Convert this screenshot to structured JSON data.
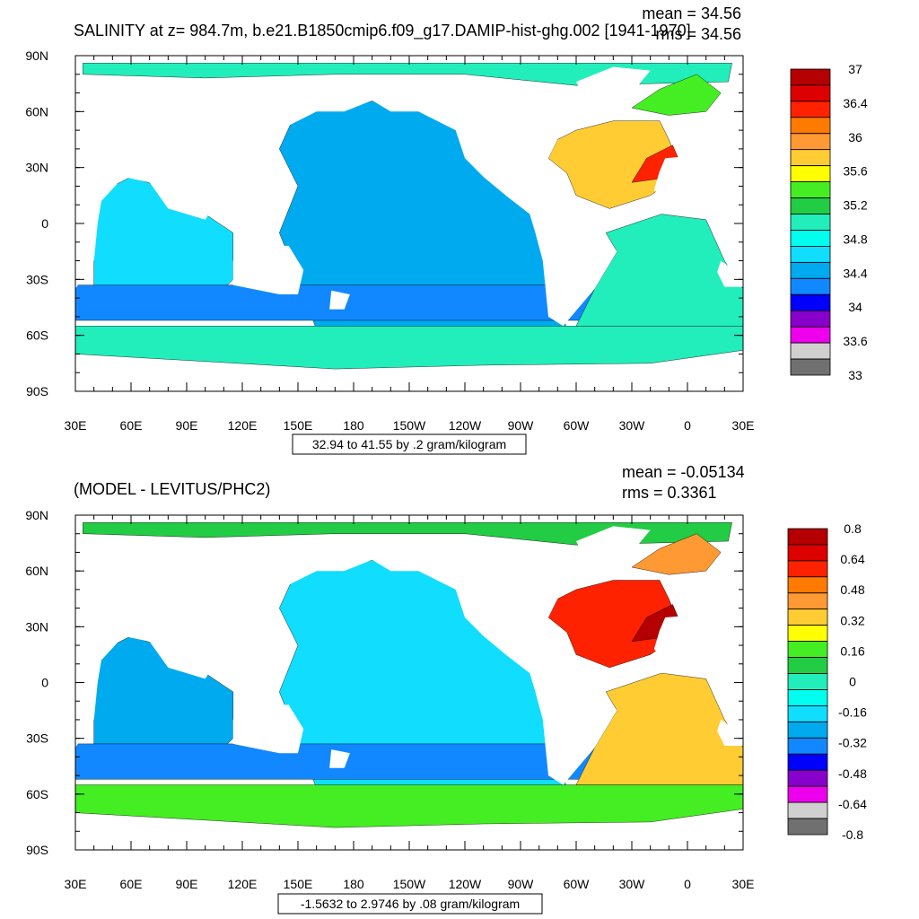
{
  "colors": {
    "ocean_land_mask": "#ffffff",
    "frame": "#000000"
  },
  "chart_data": [
    {
      "type": "heatmap",
      "title": "SALINITY at z= 984.7m, b.e21.B1850cmip6.f09_g17.DAMIP-hist-ghg.002 [1941-1970]",
      "stats": {
        "mean": "mean = 34.56",
        "rms": "rms = 34.56"
      },
      "x_tick_labels": [
        "30E",
        "60E",
        "90E",
        "120E",
        "150E",
        "180",
        "150W",
        "120W",
        "90W",
        "60W",
        "30W",
        "0",
        "30E"
      ],
      "y_tick_labels": [
        "90N",
        "60N",
        "30N",
        "0",
        "30S",
        "60S",
        "90S"
      ],
      "lon_range": [
        30,
        390
      ],
      "lat_range": [
        -90,
        90
      ],
      "info_box": "32.94 to 41.55 by .2 gram/kilogram",
      "colorbar": {
        "labels": [
          "37",
          "36.4",
          "36",
          "35.6",
          "35.2",
          "34.8",
          "34.4",
          "34",
          "33.6",
          "33"
        ],
        "colors": [
          "#b40000",
          "#dd0000",
          "#ff2200",
          "#ff7a00",
          "#ff9933",
          "#ffcc33",
          "#ffff00",
          "#44ee22",
          "#22cc44",
          "#22eebb",
          "#00ffee",
          "#11ddff",
          "#00aaee",
          "#1188ff",
          "#0000ff",
          "#8800cc",
          "#ee00ee",
          "#d0d0d0",
          "#707070"
        ]
      },
      "regions": [
        {
          "name": "arctic",
          "color": "#22eebb"
        },
        {
          "name": "pacific",
          "color": "#00aaee"
        },
        {
          "name": "indian",
          "color": "#11ddff"
        },
        {
          "name": "southern_band",
          "color": "#1188ff"
        },
        {
          "name": "antarctic",
          "color": "#22eebb"
        },
        {
          "name": "atlantic_south",
          "color": "#22eebb"
        },
        {
          "name": "atlantic_north",
          "color": "#ffcc33"
        },
        {
          "name": "atlantic_core",
          "color": "#ff2200"
        },
        {
          "name": "nordic",
          "color": "#44ee22"
        }
      ]
    },
    {
      "type": "heatmap",
      "title": "(MODEL - LEVITUS/PHC2)",
      "stats": {
        "mean": "mean = -0.05134",
        "rms": "rms = 0.3361"
      },
      "x_tick_labels": [
        "30E",
        "60E",
        "90E",
        "120E",
        "150E",
        "180",
        "150W",
        "120W",
        "90W",
        "60W",
        "30W",
        "0",
        "30E"
      ],
      "y_tick_labels": [
        "90N",
        "60N",
        "30N",
        "0",
        "30S",
        "60S",
        "90S"
      ],
      "lon_range": [
        30,
        390
      ],
      "lat_range": [
        -90,
        90
      ],
      "info_box": "-1.5632 to 2.9746 by .08 gram/kilogram",
      "colorbar": {
        "labels": [
          "0.8",
          "0.64",
          "0.48",
          "0.32",
          "0.16",
          "0",
          "-0.16",
          "-0.32",
          "-0.48",
          "-0.64",
          "-0.8"
        ],
        "colors": [
          "#b40000",
          "#dd0000",
          "#ff2200",
          "#ff7a00",
          "#ff9933",
          "#ffcc33",
          "#ffff00",
          "#44ee22",
          "#22cc44",
          "#22eebb",
          "#00ffee",
          "#11ddff",
          "#00aaee",
          "#1188ff",
          "#0000ff",
          "#8800cc",
          "#ee00ee",
          "#d0d0d0",
          "#707070"
        ]
      },
      "regions": [
        {
          "name": "arctic",
          "color": "#22cc44"
        },
        {
          "name": "pacific",
          "color": "#11ddff"
        },
        {
          "name": "indian",
          "color": "#00aaee"
        },
        {
          "name": "southern_band",
          "color": "#1188ff"
        },
        {
          "name": "antarctic",
          "color": "#44ee22"
        },
        {
          "name": "atlantic_south",
          "color": "#ffcc33"
        },
        {
          "name": "atlantic_north",
          "color": "#ff2200"
        },
        {
          "name": "atlantic_core",
          "color": "#b40000"
        },
        {
          "name": "nordic",
          "color": "#ff9933"
        }
      ]
    }
  ]
}
